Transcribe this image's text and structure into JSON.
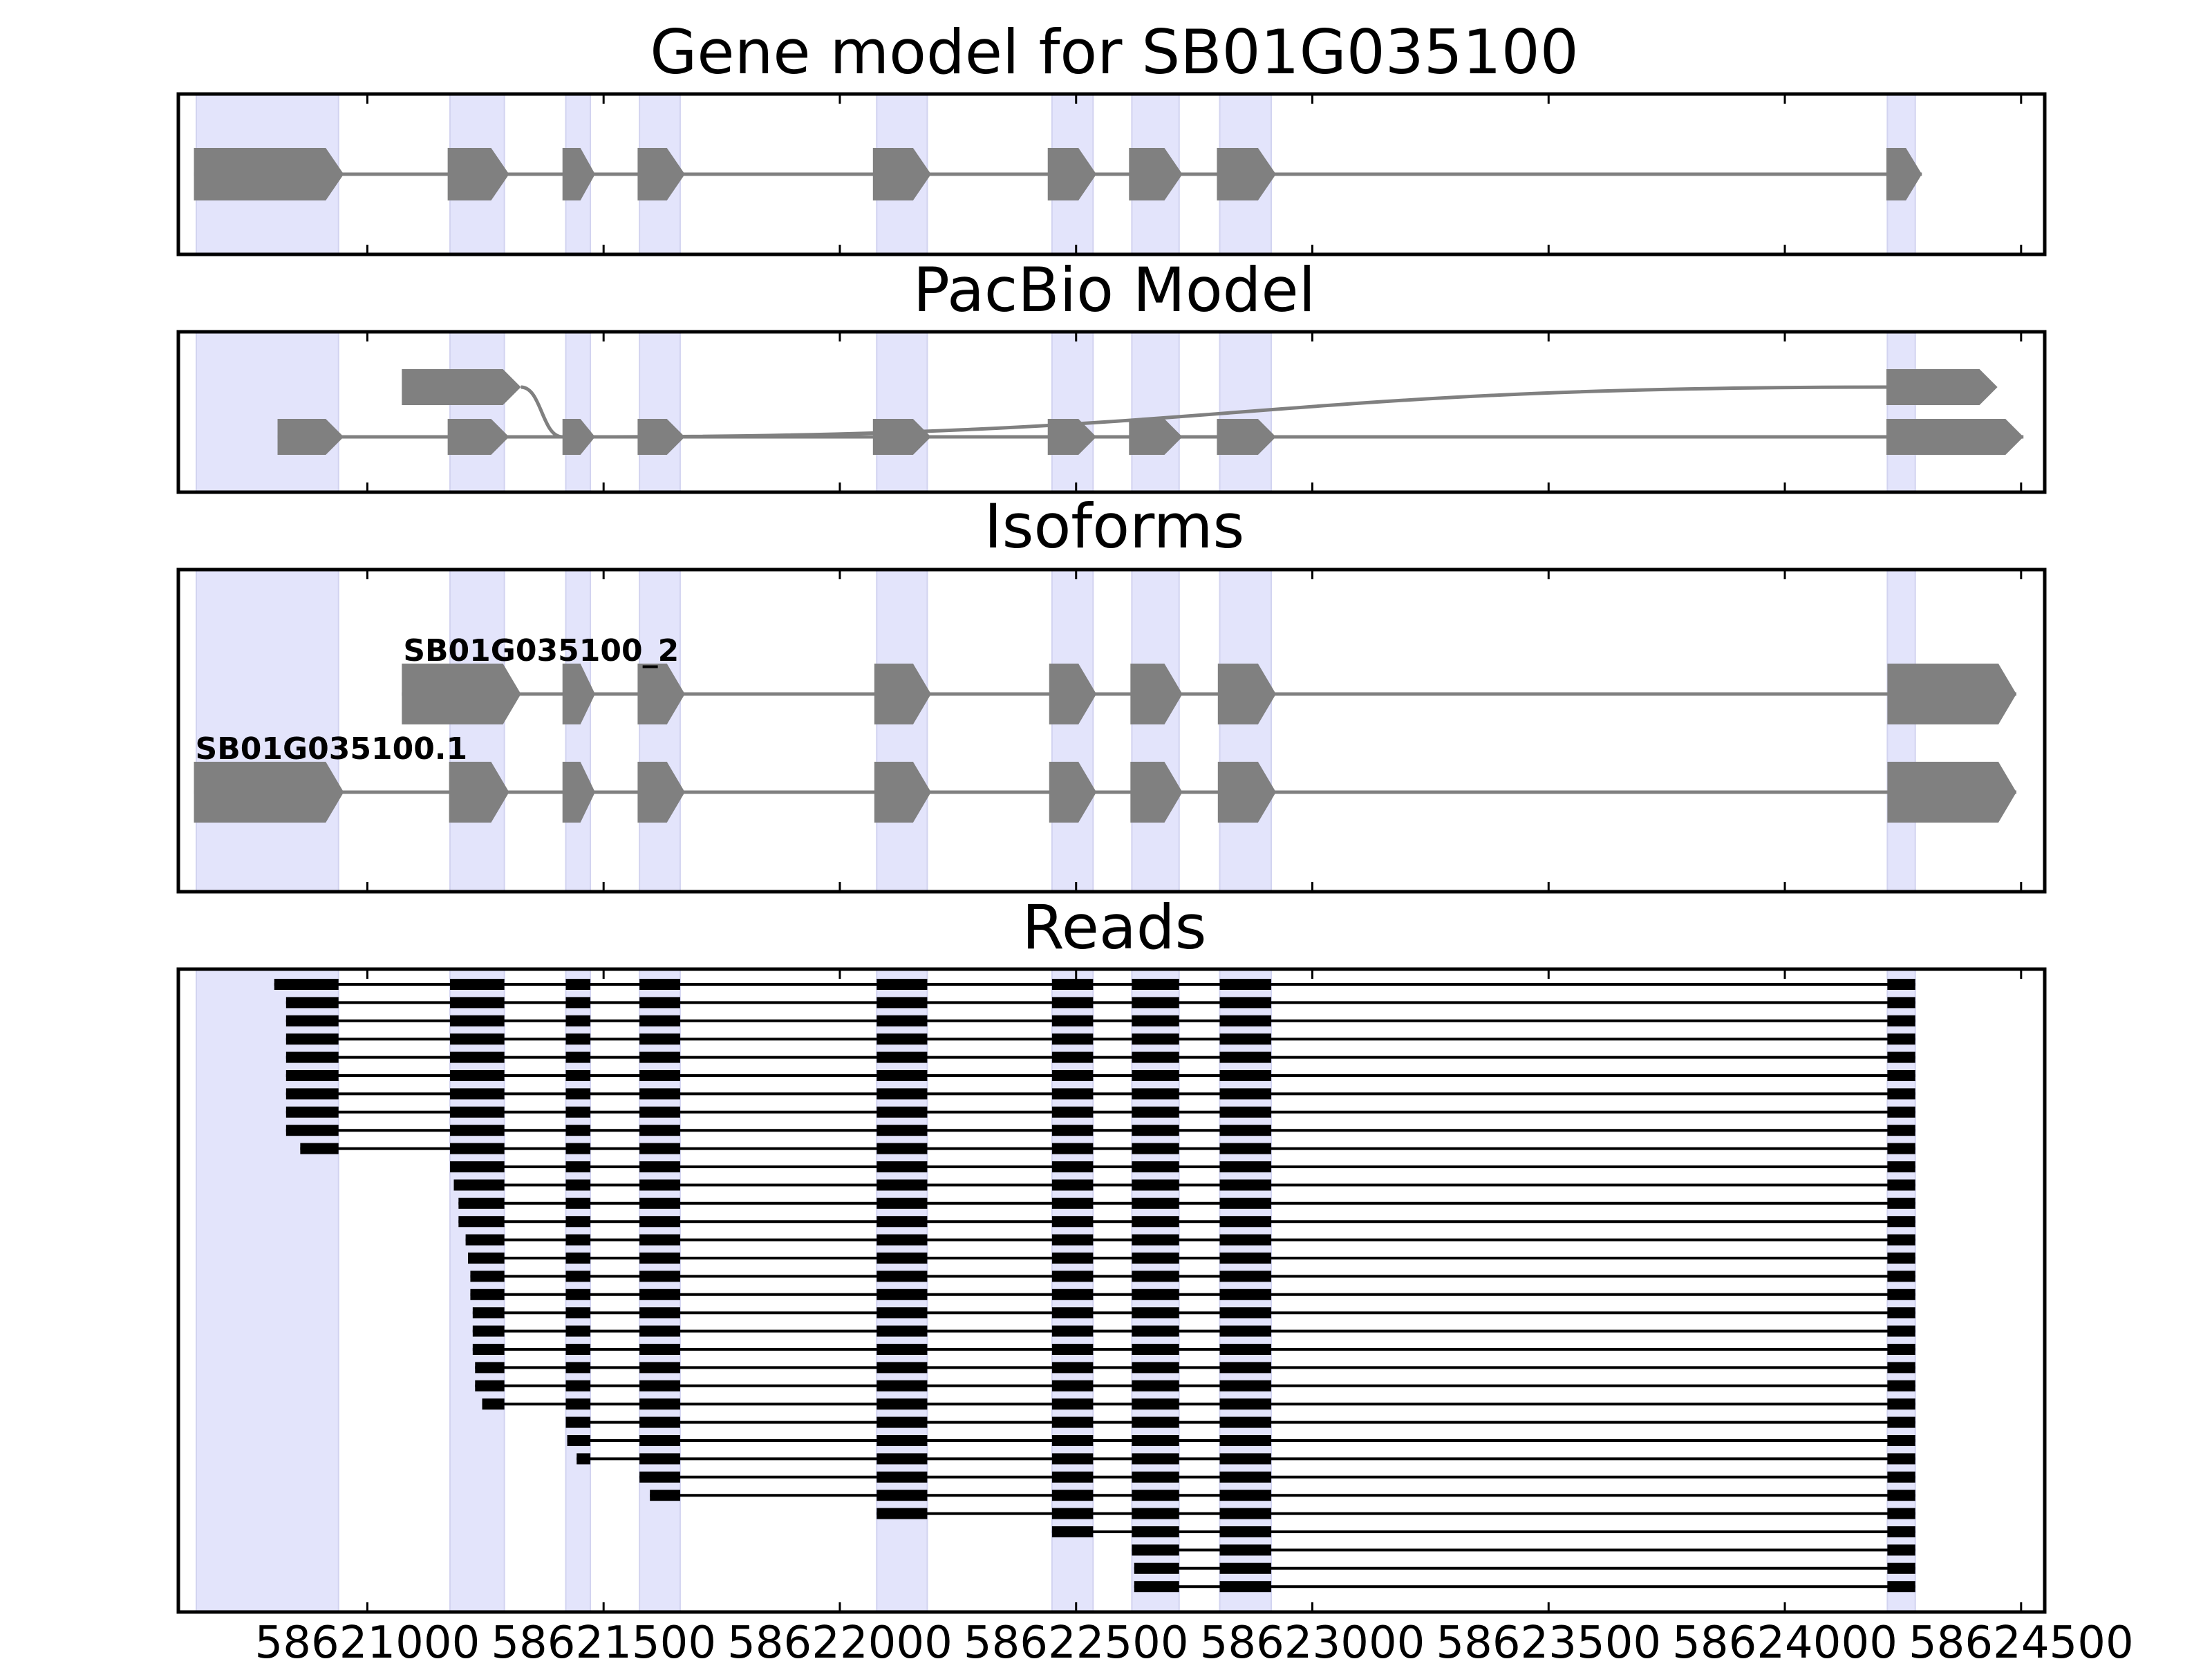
{
  "chart_data": {
    "type": "gene_structure",
    "gene": "SB01G035100",
    "xlim": [
      58620600,
      58624550
    ],
    "x_ticks": [
      {
        "value": 58621000,
        "label": "58621000"
      },
      {
        "value": 58621500,
        "label": "58621500"
      },
      {
        "value": 58622000,
        "label": "58622000"
      },
      {
        "value": 58622500,
        "label": "58622500"
      },
      {
        "value": 58623000,
        "label": "58623000"
      },
      {
        "value": 58623500,
        "label": "58623500"
      },
      {
        "value": 58624000,
        "label": "58624000"
      },
      {
        "value": 58624500,
        "label": "58624500"
      }
    ],
    "highlight_exons": [
      [
        58620638,
        58620939
      ],
      [
        58621175,
        58621290
      ],
      [
        58621420,
        58621472
      ],
      [
        58621576,
        58621662
      ],
      [
        58622078,
        58622185
      ],
      [
        58622449,
        58622536
      ],
      [
        58622618,
        58622718
      ],
      [
        58622804,
        58622913
      ],
      [
        58624217,
        58624276
      ]
    ],
    "panels": [
      {
        "title": "Gene model for SB01G035100",
        "tracks": [
          {
            "label": "",
            "exons": [
              [
                58620633,
                58620950
              ],
              [
                58621170,
                58621300
              ],
              [
                58621413,
                58621482
              ],
              [
                58621572,
                58621672
              ],
              [
                58622070,
                58622193
              ],
              [
                58622440,
                58622543
              ],
              [
                58622612,
                58622725
              ],
              [
                58622798,
                58622923
              ],
              [
                58624215,
                58624290
              ]
            ]
          }
        ]
      },
      {
        "title": "PacBio Model",
        "tracks": [
          {
            "label": "",
            "exons": [
              [
                58620810,
                58620950
              ],
              [
                58621170,
                58621300
              ],
              [
                58621413,
                58621482
              ],
              [
                58621572,
                58621672
              ],
              [
                58622070,
                58622193
              ],
              [
                58622440,
                58622543
              ],
              [
                58622612,
                58622725
              ],
              [
                58622798,
                58622923
              ],
              [
                58624215,
                58624505
              ]
            ]
          },
          {
            "label": "",
            "exons": [
              [
                58621073,
                58621325
              ],
              [
                58621413,
                58621482
              ],
              [
                58624215,
                58624450
              ]
            ]
          }
        ]
      },
      {
        "title": "Isoforms",
        "tracks": [
          {
            "label": "SB01G035100.1",
            "exons": [
              [
                58620633,
                58620950
              ],
              [
                58621173,
                58621300
              ],
              [
                58621413,
                58621482
              ],
              [
                58621572,
                58621672
              ],
              [
                58622073,
                58622193
              ],
              [
                58622443,
                58622543
              ],
              [
                58622615,
                58622725
              ],
              [
                58622800,
                58622923
              ],
              [
                58624217,
                58624490
              ]
            ]
          },
          {
            "label": "SB01G035100_2",
            "exons": [
              [
                58621073,
                58621325
              ],
              [
                58621413,
                58621482
              ],
              [
                58621572,
                58621672
              ],
              [
                58622073,
                58622193
              ],
              [
                58622443,
                58622543
              ],
              [
                58622615,
                58622725
              ],
              [
                58622800,
                58622923
              ],
              [
                58624217,
                58624490
              ]
            ]
          }
        ]
      },
      {
        "title": "Reads",
        "read_count": 34,
        "read_ends": [
          [
            58620803,
            58624438
          ],
          [
            58620828,
            58624522
          ],
          [
            58620828,
            58624522
          ],
          [
            58620828,
            58624522
          ],
          [
            58620828,
            58624522
          ],
          [
            58620828,
            58624540
          ],
          [
            58620828,
            58624540
          ],
          [
            58620828,
            58624540
          ],
          [
            58620828,
            58624478
          ],
          [
            58620858,
            58624540
          ],
          [
            58621068,
            58624478
          ],
          [
            58621183,
            58624478
          ],
          [
            58621193,
            58624438
          ],
          [
            58621193,
            58624540
          ],
          [
            58621208,
            58624453
          ],
          [
            58621213,
            58624438
          ],
          [
            58621218,
            58624438
          ],
          [
            58621218,
            58624438
          ],
          [
            58621223,
            58624518
          ],
          [
            58621223,
            58624518
          ],
          [
            58621223,
            58624522
          ],
          [
            58621228,
            58624522
          ],
          [
            58621228,
            58624438
          ],
          [
            58621243,
            58624518
          ],
          [
            58621413,
            58624503
          ],
          [
            58621423,
            58624518
          ],
          [
            58621443,
            58624438
          ],
          [
            58621568,
            58624468
          ],
          [
            58621598,
            58624438
          ],
          [
            58622078,
            58624522
          ],
          [
            58622243,
            58624478
          ],
          [
            58622613,
            58624378
          ],
          [
            58622623,
            58624438
          ],
          [
            58622623,
            58624438
          ]
        ]
      }
    ]
  }
}
